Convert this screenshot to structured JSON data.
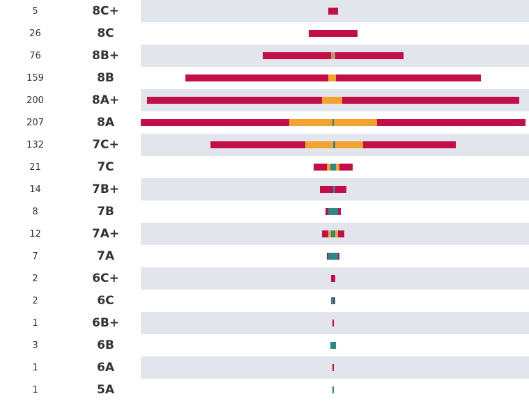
{
  "chart_data": {
    "type": "bar",
    "orientation": "horizontal-diverging",
    "columns": [
      "count",
      "grade",
      "distribution"
    ],
    "x_max": 207,
    "rows": [
      {
        "grade": "8C+",
        "count": 5,
        "segments": [
          {
            "color": "#c40e48",
            "value": 5
          }
        ]
      },
      {
        "grade": "8C",
        "count": 26,
        "segments": [
          {
            "color": "#c40e48",
            "value": 26
          }
        ]
      },
      {
        "grade": "8B+",
        "count": 76,
        "segments": [
          {
            "color": "#c40e48",
            "value": 37
          },
          {
            "color": "#b89a6a",
            "value": 2
          },
          {
            "color": "#c40e48",
            "value": 37
          }
        ]
      },
      {
        "grade": "8B",
        "count": 159,
        "segments": [
          {
            "color": "#c40e48",
            "value": 77
          },
          {
            "color": "#f2a32f",
            "value": 4
          },
          {
            "color": "#c40e48",
            "value": 78
          }
        ]
      },
      {
        "grade": "8A+",
        "count": 200,
        "segments": [
          {
            "color": "#c40e48",
            "value": 94
          },
          {
            "color": "#f2a32f",
            "value": 11
          },
          {
            "color": "#c40e48",
            "value": 95
          }
        ]
      },
      {
        "grade": "8A",
        "count": 207,
        "segments": [
          {
            "color": "#c40e48",
            "value": 80
          },
          {
            "color": "#f2a32f",
            "value": 23
          },
          {
            "color": "#2a8a88",
            "value": 1
          },
          {
            "color": "#f2a32f",
            "value": 23
          },
          {
            "color": "#c40e48",
            "value": 80
          }
        ]
      },
      {
        "grade": "7C+",
        "count": 132,
        "segments": [
          {
            "color": "#c40e48",
            "value": 51
          },
          {
            "color": "#f2a32f",
            "value": 15
          },
          {
            "color": "#2a8a88",
            "value": 1
          },
          {
            "color": "#f2a32f",
            "value": 15
          },
          {
            "color": "#c40e48",
            "value": 50
          }
        ]
      },
      {
        "grade": "7C",
        "count": 21,
        "segments": [
          {
            "color": "#c40e48",
            "value": 7
          },
          {
            "color": "#f2a32f",
            "value": 2
          },
          {
            "color": "#2a8a88",
            "value": 3
          },
          {
            "color": "#f2a32f",
            "value": 2
          },
          {
            "color": "#c40e48",
            "value": 7
          }
        ]
      },
      {
        "grade": "7B+",
        "count": 14,
        "segments": [
          {
            "color": "#c40e48",
            "value": 7
          },
          {
            "color": "#2a8a88",
            "value": 1
          },
          {
            "color": "#c40e48",
            "value": 6
          }
        ]
      },
      {
        "grade": "7B",
        "count": 8,
        "segments": [
          {
            "color": "#c40e48",
            "value": 1.5
          },
          {
            "color": "#2a8a88",
            "value": 5
          },
          {
            "color": "#c40e48",
            "value": 1.5
          }
        ]
      },
      {
        "grade": "7A+",
        "count": 12,
        "segments": [
          {
            "color": "#c40e48",
            "value": 3.5
          },
          {
            "color": "#f2a32f",
            "value": 1.5
          },
          {
            "color": "#2a8a88",
            "value": 2
          },
          {
            "color": "#f2a32f",
            "value": 1.5
          },
          {
            "color": "#c40e48",
            "value": 3.5
          }
        ]
      },
      {
        "grade": "7A",
        "count": 7,
        "segments": [
          {
            "color": "#c40e48",
            "value": 1
          },
          {
            "color": "#2a8a88",
            "value": 5
          },
          {
            "color": "#c40e48",
            "value": 1
          }
        ]
      },
      {
        "grade": "6C+",
        "count": 2,
        "segments": [
          {
            "color": "#c40e48",
            "value": 2
          }
        ]
      },
      {
        "grade": "6C",
        "count": 2,
        "segments": [
          {
            "color": "#2a8a88",
            "value": 1
          },
          {
            "color": "#555a6e",
            "value": 1
          }
        ]
      },
      {
        "grade": "6B+",
        "count": 1,
        "segments": [
          {
            "color": "#c40e48",
            "value": 1
          }
        ]
      },
      {
        "grade": "6B",
        "count": 3,
        "segments": [
          {
            "color": "#2a8a88",
            "value": 3
          }
        ]
      },
      {
        "grade": "6A",
        "count": 1,
        "segments": [
          {
            "color": "#c40e48",
            "value": 1
          }
        ]
      },
      {
        "grade": "5A",
        "count": 1,
        "segments": [
          {
            "color": "#2a8a88",
            "value": 1
          }
        ]
      }
    ]
  },
  "colors": {
    "stripe": "#e3e5ec",
    "background": "#ffffff",
    "text": "#333333"
  }
}
